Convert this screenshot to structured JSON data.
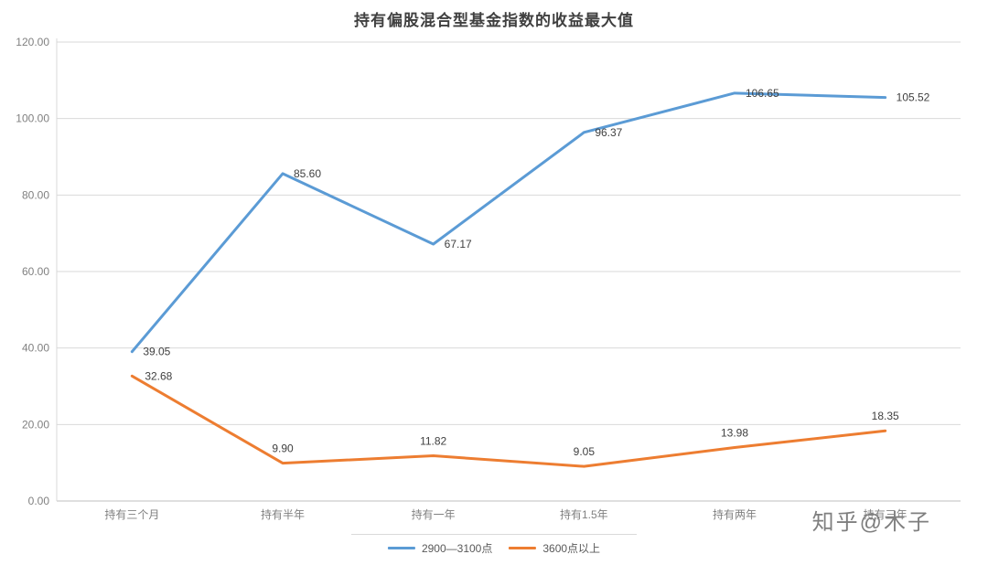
{
  "title": "持有偏股混合型基金指数的收益最大值",
  "watermark": "知乎@木子",
  "chart_data": {
    "type": "line",
    "title": "持有偏股混合型基金指数的收益最大值",
    "categories": [
      "持有三个月",
      "持有半年",
      "持有一年",
      "持有1.5年",
      "持有两年",
      "持有三年"
    ],
    "series": [
      {
        "name": "2900—3100点",
        "color": "#5B9BD5",
        "values": [
          39.05,
          85.6,
          67.17,
          96.37,
          106.65,
          105.52
        ]
      },
      {
        "name": "3600点以上",
        "color": "#ED7D31",
        "values": [
          32.68,
          9.9,
          11.82,
          9.05,
          13.98,
          18.35
        ]
      }
    ],
    "ylim": [
      0,
      120
    ],
    "ytick_step": 20,
    "ytick_labels": [
      "0.00",
      "20.00",
      "40.00",
      "60.00",
      "80.00",
      "100.00",
      "120.00"
    ],
    "grid": true,
    "legend_position": "bottom",
    "colors": {
      "gridline": "#d9d9d9",
      "axis_line": "#bfbfbf",
      "tick_text": "#808080",
      "data_label_text": "#404040"
    }
  }
}
